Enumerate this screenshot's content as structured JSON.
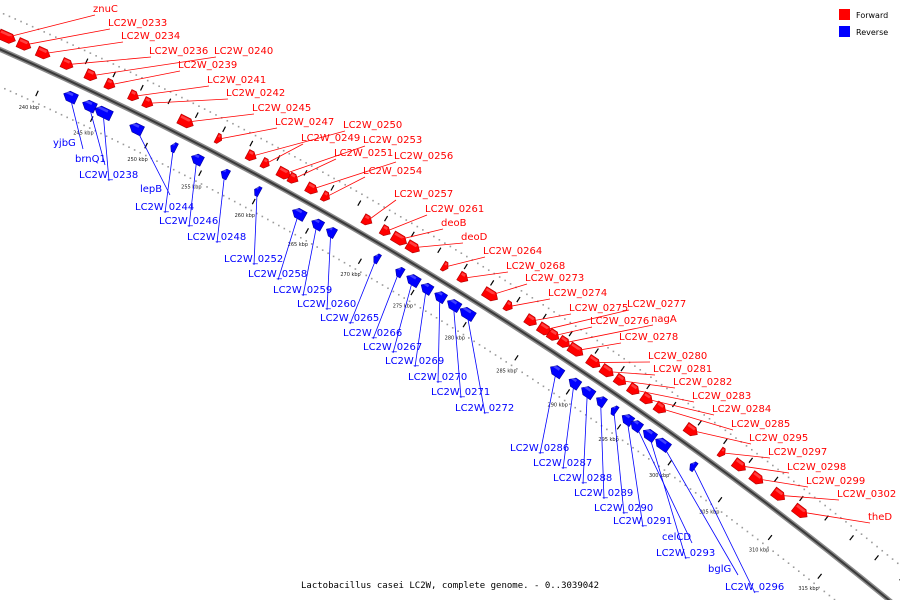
{
  "caption": "Lactobacillus casei LC2W, complete genome. - 0..3039042",
  "legend": [
    {
      "label": "Forward",
      "color": "#ff0000"
    },
    {
      "label": "Reverse",
      "color": "#0000ff"
    }
  ],
  "ticks": [
    "240 kbp",
    "245 kbp",
    "250 kbp",
    "255 kbp",
    "260 kbp",
    "265 kbp",
    "270 kbp",
    "275 kbp",
    "280 kbp",
    "285 kbp",
    "290 kbp",
    "295 kbp",
    "300 kbp",
    "305 kbp",
    "310 kbp",
    "315 kbp"
  ],
  "forward_genes": [
    "znuC",
    "LC2W_0233",
    "LC2W_0234",
    "LC2W_0236",
    "LC2W_0240",
    "LC2W_0239",
    "LC2W_0241",
    "LC2W_0242",
    "LC2W_0245",
    "LC2W_0247",
    "LC2W_0250",
    "LC2W_0249",
    "LC2W_0253",
    "LC2W_0251",
    "LC2W_0256",
    "LC2W_0254",
    "LC2W_0257",
    "LC2W_0261",
    "deoB",
    "deoD",
    "LC2W_0264",
    "LC2W_0268",
    "LC2W_0273",
    "LC2W_0274",
    "LC2W_0275",
    "LC2W_0277",
    "LC2W_0276",
    "nagA",
    "LC2W_0278",
    "LC2W_0280",
    "LC2W_0281",
    "LC2W_0282",
    "LC2W_0283",
    "LC2W_0284",
    "LC2W_0285",
    "LC2W_0295",
    "LC2W_0297",
    "LC2W_0298",
    "LC2W_0299",
    "LC2W_0302",
    "theD"
  ],
  "reverse_genes": [
    "yjbG",
    "brnQ1",
    "LC2W_0238",
    "lepB",
    "LC2W_0244",
    "LC2W_0246",
    "LC2W_0248",
    "LC2W_0252",
    "LC2W_0258",
    "LC2W_0259",
    "LC2W_0260",
    "LC2W_0265",
    "LC2W_0266",
    "LC2W_0267",
    "LC2W_0269",
    "LC2W_0270",
    "LC2W_0271",
    "LC2W_0272",
    "LC2W_0286",
    "LC2W_0287",
    "LC2W_0288",
    "LC2W_0289",
    "LC2W_0290",
    "LC2W_0291",
    "celCD",
    "LC2W_0293",
    "bglG",
    "LC2W_0296"
  ]
}
